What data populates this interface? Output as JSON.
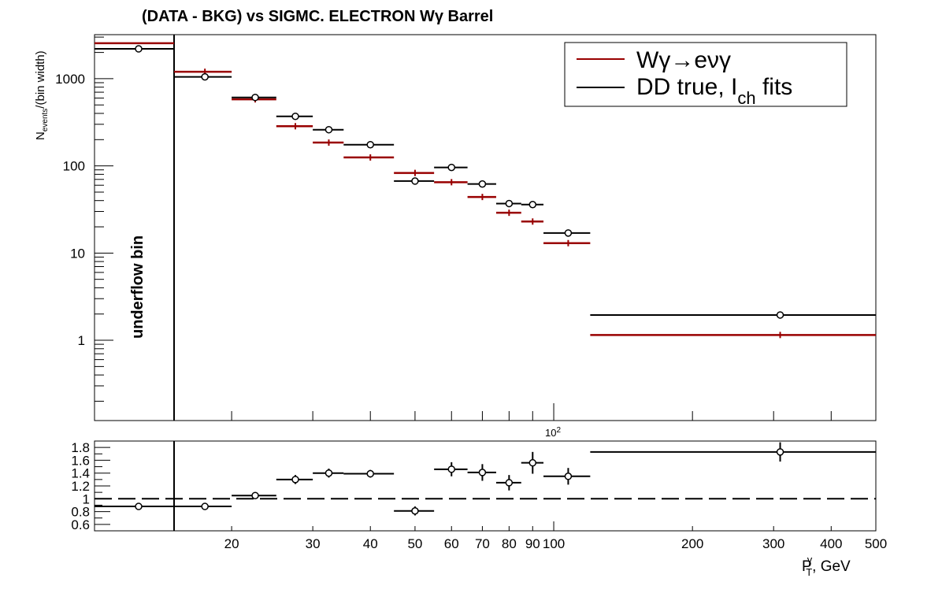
{
  "title": "(DATA - BKG) vs SIGMC. ELECTRON Wγ  Barrel",
  "underflow_label": "underflow bin",
  "colors": {
    "signal": "#990000",
    "data": "#000000"
  },
  "chart_data": [
    {
      "type": "scatter",
      "panel": "main",
      "ylabel": "N_events/(bin width)",
      "yscale": "log",
      "ylim": [
        0.12,
        3200
      ],
      "y_ticks": [
        "1",
        "10",
        "100",
        "1000"
      ],
      "xscale": "log",
      "xlim": [
        15,
        500
      ],
      "x_mid_label": "10^2",
      "legend": {
        "placement": "top-right",
        "entries": [
          {
            "label": "Wγ→eνγ",
            "series": "signal"
          },
          {
            "label_main": "DD true, I",
            "label_sub": "ch",
            "label_tail": " fits",
            "series": "data"
          }
        ]
      },
      "underflow": {
        "signal": 2550,
        "data": 2200,
        "data_point": 2200
      },
      "bins": [
        {
          "xlo": 15,
          "xhi": 20,
          "xc": 17.5,
          "signal": 1200,
          "data": 1050
        },
        {
          "xlo": 20,
          "xhi": 25,
          "xc": 22.5,
          "signal": 580,
          "data": 610
        },
        {
          "xlo": 25,
          "xhi": 30,
          "xc": 27.5,
          "signal": 285,
          "data": 370
        },
        {
          "xlo": 30,
          "xhi": 35,
          "xc": 32.5,
          "signal": 185,
          "data": 260
        },
        {
          "xlo": 35,
          "xhi": 45,
          "xc": 40,
          "signal": 125,
          "data": 175
        },
        {
          "xlo": 45,
          "xhi": 55,
          "xc": 50,
          "signal": 83,
          "data": 67
        },
        {
          "xlo": 55,
          "xhi": 65,
          "xc": 60,
          "signal": 65,
          "data": 96
        },
        {
          "xlo": 65,
          "xhi": 75,
          "xc": 70,
          "signal": 44,
          "data": 62
        },
        {
          "xlo": 75,
          "xhi": 85,
          "xc": 80,
          "signal": 29,
          "data": 37
        },
        {
          "xlo": 85,
          "xhi": 95,
          "xc": 90,
          "signal": 23,
          "data": 36
        },
        {
          "xlo": 95,
          "xhi": 120,
          "xc": 107.5,
          "signal": 13,
          "data": 17
        },
        {
          "xlo": 120,
          "xhi": 500,
          "xc": 310,
          "signal": 1.15,
          "data": 1.95
        }
      ]
    },
    {
      "type": "scatter",
      "panel": "ratio",
      "xlabel_main": "P",
      "xlabel_sup": "γ",
      "xlabel_sub": "T",
      "xlabel_tail": ", GeV",
      "x_tick_labels": [
        "20",
        "30",
        "40",
        "50",
        "60",
        "70",
        "80",
        "90",
        "100",
        "200",
        "300",
        "400",
        "500"
      ],
      "ylim": [
        0.5,
        1.9
      ],
      "y_ticks": [
        "0.6",
        "0.8",
        "1",
        "1.2",
        "1.4",
        "1.6",
        "1.8"
      ],
      "reference_line": 1,
      "underflow": {
        "ratio": 0.88
      },
      "points": [
        {
          "xlo": 15,
          "xhi": 20,
          "xc": 17.5,
          "ratio": 0.88,
          "err": 0.02
        },
        {
          "xlo": 20,
          "xhi": 25,
          "xc": 22.5,
          "ratio": 1.05,
          "err": 0.04
        },
        {
          "xlo": 25,
          "xhi": 30,
          "xc": 27.5,
          "ratio": 1.3,
          "err": 0.07
        },
        {
          "xlo": 30,
          "xhi": 35,
          "xc": 32.5,
          "ratio": 1.4,
          "err": 0.07
        },
        {
          "xlo": 35,
          "xhi": 45,
          "xc": 40,
          "ratio": 1.39,
          "err": 0.06
        },
        {
          "xlo": 45,
          "xhi": 55,
          "xc": 50,
          "ratio": 0.81,
          "err": 0.07
        },
        {
          "xlo": 55,
          "xhi": 65,
          "xc": 60,
          "ratio": 1.46,
          "err": 0.11
        },
        {
          "xlo": 65,
          "xhi": 75,
          "xc": 70,
          "ratio": 1.41,
          "err": 0.13
        },
        {
          "xlo": 75,
          "xhi": 85,
          "xc": 80,
          "ratio": 1.25,
          "err": 0.12
        },
        {
          "xlo": 85,
          "xhi": 95,
          "xc": 90,
          "ratio": 1.56,
          "err": 0.17
        },
        {
          "xlo": 95,
          "xhi": 120,
          "xc": 107.5,
          "ratio": 1.35,
          "err": 0.13
        },
        {
          "xlo": 120,
          "xhi": 500,
          "xc": 310,
          "ratio": 1.73,
          "err": 0.15
        }
      ]
    }
  ]
}
